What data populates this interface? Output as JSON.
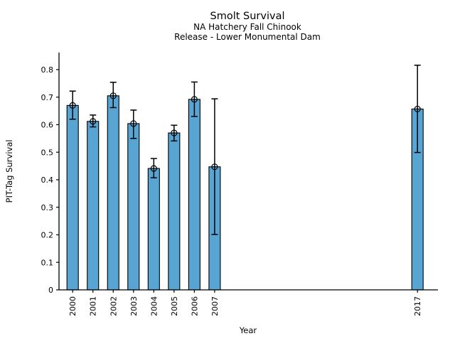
{
  "figure": {
    "background": "#ffffff",
    "text_color": "#000000"
  },
  "chart_data": {
    "type": "bar",
    "title": "Smolt Survival",
    "subtitle_line1": "NA Hatchery Fall Chinook",
    "subtitle_line2": "Release - Lower Monumental Dam",
    "xlabel": "Year",
    "ylabel": "PIT-Tag Survival",
    "categories": [
      2000,
      2001,
      2002,
      2003,
      2004,
      2005,
      2006,
      2007,
      2017
    ],
    "x_tick_labels": [
      "2000",
      "2001",
      "2002",
      "2003",
      "2004",
      "2005",
      "2006",
      "2007",
      "2017"
    ],
    "values": [
      0.67,
      0.612,
      0.705,
      0.604,
      0.441,
      0.57,
      0.692,
      0.447,
      0.657
    ],
    "error_low": [
      0.62,
      0.592,
      0.662,
      0.55,
      0.407,
      0.541,
      0.63,
      0.201,
      0.499
    ],
    "error_high": [
      0.722,
      0.635,
      0.754,
      0.653,
      0.477,
      0.598,
      0.755,
      0.694,
      0.816
    ],
    "x_axis_scale": "linear-year",
    "xlim": [
      1999.3,
      2018.0
    ],
    "ylim": [
      0,
      0.86
    ],
    "yticks": [
      0,
      0.1,
      0.2,
      0.3,
      0.4,
      0.5,
      0.6,
      0.7,
      0.8
    ],
    "ytick_labels": [
      "0",
      "0.1",
      "0.2",
      "0.3",
      "0.4",
      "0.5",
      "0.6",
      "0.7",
      "0.8"
    ],
    "grid": false,
    "legend": "none",
    "bar_color": "#58A5D3",
    "bar_edge_color": "#000000",
    "error_bar_color": "#000000",
    "marker": "open-circle-plus"
  }
}
